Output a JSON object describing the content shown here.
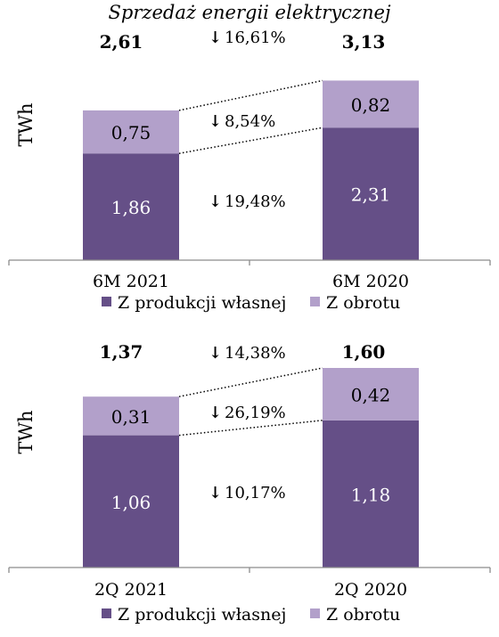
{
  "title": "Sprzedaż energii elektrycznej",
  "colors": {
    "own": "#654F87",
    "trade": "#B2A0CA"
  },
  "chart_data": [
    {
      "type": "bar",
      "stacked": true,
      "ylabel": "TWh",
      "categories": [
        "6M 2021",
        "6M 2020"
      ],
      "series": [
        {
          "name": "Z produkcji własnej",
          "values": [
            1.86,
            2.31
          ],
          "labels": [
            "1,86",
            "2,31"
          ]
        },
        {
          "name": "Z obrotu",
          "values": [
            0.75,
            0.82
          ],
          "labels": [
            "0,75",
            "0,82"
          ]
        }
      ],
      "totals": [
        "2,61",
        "3,13"
      ],
      "changes": {
        "total": "16,61%",
        "trade": "8,54%",
        "own": "19,48%"
      },
      "legend": "bottom"
    },
    {
      "type": "bar",
      "stacked": true,
      "ylabel": "TWh",
      "categories": [
        "2Q 2021",
        "2Q 2020"
      ],
      "series": [
        {
          "name": "Z produkcji własnej",
          "values": [
            1.06,
            1.18
          ],
          "labels": [
            "1,06",
            "1,18"
          ]
        },
        {
          "name": "Z obrotu",
          "values": [
            0.31,
            0.42
          ],
          "labels": [
            "0,31",
            "0,42"
          ]
        }
      ],
      "totals": [
        "1,37",
        "1,60"
      ],
      "changes": {
        "total": "14,38%",
        "trade": "26,19%",
        "own": "10,17%"
      },
      "legend": "bottom"
    }
  ]
}
